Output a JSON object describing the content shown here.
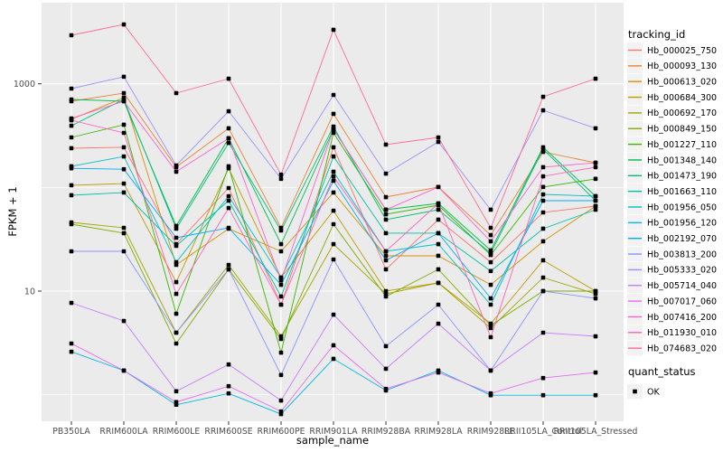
{
  "figure": {
    "y_axis": {
      "title": "FPKM + 1",
      "tick_labels": [
        "1000",
        "10"
      ]
    },
    "x_axis": {
      "title": "sample_name"
    },
    "legend": {
      "tracking_title": "tracking_id",
      "quant_title": "quant_status",
      "quant_items": [
        {
          "label": "OK",
          "marker": "black-square"
        }
      ]
    }
  },
  "colors": {
    "panel_bg": "#EBEBEB",
    "grid": "#FFFFFF",
    "tick_text": "#4D4D4D",
    "tick_mark": "#333333",
    "text": "#000000",
    "legend_key_bg": "#F2F2F2",
    "point": "#000000"
  },
  "chart_data": {
    "type": "line",
    "title": "",
    "xlabel": "sample_name",
    "ylabel": "FPKM + 1",
    "y_scale": "log10",
    "y_ticks": [
      1000,
      10
    ],
    "y_minor_ticks": [
      100,
      1
    ],
    "ylim_log10": [
      -0.26,
      3.78
    ],
    "grid": true,
    "legend_position": "right",
    "point_shape": "square",
    "categories": [
      "PB350LA",
      "RRIM600LA",
      "RRIM600LE",
      "RRIM600SE",
      "RRIM600PE",
      "RRIM901LA",
      "RRIM928BA",
      "RRIM928LA",
      "RRIM928LE",
      "RRII105LA_Control",
      "RRII105LA_Stressed"
    ],
    "series": [
      {
        "name": "Hb_000025_750",
        "color": "#F8766D",
        "values": [
          239,
          244,
          28.4,
          98.7,
          7.4,
          244,
          16.2,
          48.9,
          19,
          57.4,
          66.1
        ]
      },
      {
        "name": "Hb_000093_130",
        "color": "#EA8331",
        "values": [
          679,
          813,
          157,
          372,
          40.8,
          513,
          80.7,
          101,
          34.7,
          220,
          173
        ]
      },
      {
        "name": "Hb_000613_020",
        "color": "#D89000",
        "values": [
          454,
          735,
          17.9,
          40,
          24.2,
          89.3,
          21.9,
          21.9,
          11.5,
          30.2,
          66.1
        ]
      },
      {
        "name": "Hb_000684_300",
        "color": "#C09B00",
        "values": [
          105,
          109,
          12.2,
          153,
          13.5,
          59.7,
          10,
          12,
          4.85,
          19.8,
          10
        ]
      },
      {
        "name": "Hb_000692_170",
        "color": "#A3A500",
        "values": [
          46,
          40.8,
          3.97,
          17.9,
          3.66,
          28.4,
          9.4,
          12,
          4.39,
          13.5,
          9.4
        ]
      },
      {
        "name": "Hb_000849_150",
        "color": "#7CAE00",
        "values": [
          44.2,
          36.2,
          3.12,
          16.2,
          3.45,
          44.2,
          8.87,
          16.2,
          4.66,
          10,
          10
        ]
      },
      {
        "name": "Hb_001227_110",
        "color": "#39B600",
        "values": [
          304,
          403,
          6.05,
          160,
          2.55,
          336,
          55.1,
          67.4,
          22.3,
          101,
          121
        ]
      },
      {
        "name": "Hb_001348_140",
        "color": "#00BB4E",
        "values": [
          706,
          679,
          42.5,
          298,
          28.4,
          364,
          61,
          70.1,
          24.7,
          244,
          82.4
        ]
      },
      {
        "name": "Hb_001473_190",
        "color": "#00BF7D",
        "values": [
          394,
          706,
          40,
          269,
          38.4,
          386,
          48.9,
          61,
          23.2,
          234,
          74.5
        ]
      },
      {
        "name": "Hb_001663_110",
        "color": "#00C1A7",
        "values": [
          84.1,
          89.3,
          27.3,
          74.5,
          8.87,
          199,
          36.2,
          36.2,
          15.6,
          40,
          61
        ]
      },
      {
        "name": "Hb_001956_050",
        "color": "#00BFC4",
        "values": [
          160,
          199,
          19,
          82.4,
          13.5,
          142,
          24.2,
          28.4,
          7.4,
          85.7,
          82.4
        ]
      },
      {
        "name": "Hb_001956_120",
        "color": "#00B8E5",
        "values": [
          2.6,
          1.71,
          0.8,
          1.03,
          0.65,
          2.22,
          1.1,
          1.71,
          0.99,
          0.99,
          0.99
        ]
      },
      {
        "name": "Hb_002192_070",
        "color": "#00ACFC",
        "values": [
          153,
          150,
          32.7,
          40.8,
          11.5,
          116,
          19.8,
          36.2,
          8.51,
          74.5,
          74.5
        ]
      },
      {
        "name": "Hb_003813_200",
        "color": "#8B93FF",
        "values": [
          24.2,
          24.2,
          3.97,
          16.2,
          1.55,
          20.2,
          2.94,
          7.4,
          1.71,
          10,
          8.51
        ]
      },
      {
        "name": "Hb_005333_020",
        "color": "#9A93FB",
        "values": [
          899,
          1170,
          163,
          544,
          121,
          781,
          136,
          275,
          61,
          555,
          372
        ]
      },
      {
        "name": "Hb_005714_040",
        "color": "#C77CFF",
        "values": [
          7.7,
          5.15,
          1.08,
          1.96,
          0.88,
          5.93,
          1.78,
          4.85,
          1.71,
          3.97,
          3.66
        ]
      },
      {
        "name": "Hb_007017_060",
        "color": "#E76BF3",
        "values": [
          3.12,
          1.71,
          0.85,
          1.21,
          0.69,
          3,
          1.14,
          1.64,
          1.03,
          1.45,
          1.64
        ]
      },
      {
        "name": "Hb_007416_200",
        "color": "#FD61D1",
        "values": [
          463,
          679,
          142,
          298,
          12.7,
          364,
          61,
          101,
          30.2,
          157,
          173
        ]
      },
      {
        "name": "Hb_011930_010",
        "color": "#FF62BC",
        "values": [
          445,
          336,
          9.4,
          63.4,
          7.4,
          128,
          24.2,
          70.1,
          3.59,
          128,
          157
        ]
      },
      {
        "name": "Hb_074683_020",
        "color": "#FF6B94",
        "values": [
          2940,
          3740,
          813,
          1120,
          133,
          3320,
          259,
          304,
          40.8,
          750,
          1120
        ]
      }
    ],
    "quant_status": {
      "label": "OK"
    }
  }
}
